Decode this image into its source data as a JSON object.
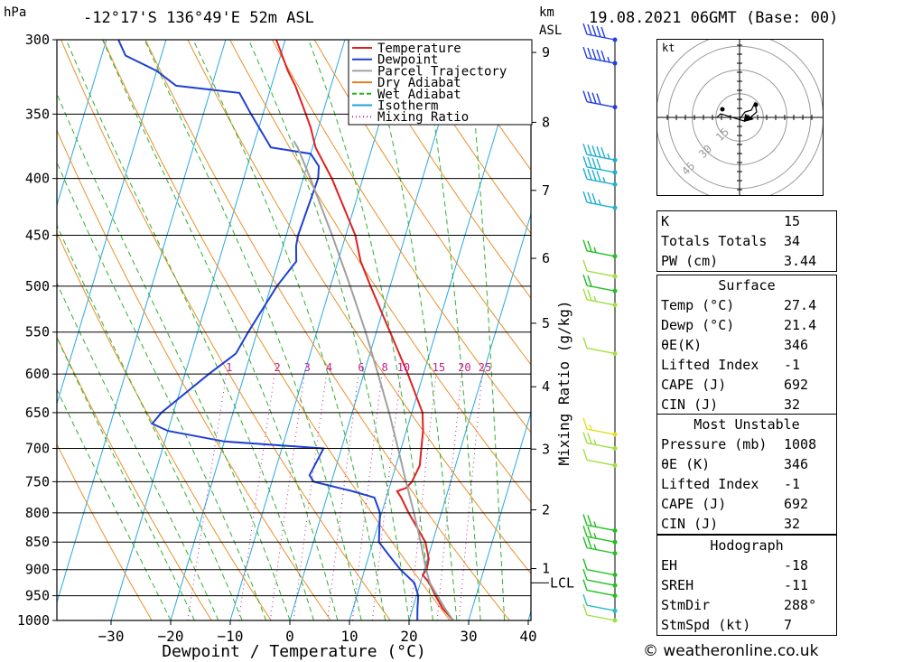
{
  "header": {
    "location": "-12°17'S 136°49'E 52m ASL",
    "datetime": "19.08.2021 06GMT (Base: 00)",
    "hpa_label": "hPa",
    "km_label": "km",
    "asl_label": "ASL"
  },
  "chart_data": {
    "type": "skew-t",
    "xlabel": "Dewpoint / Temperature (°C)",
    "ylabel_right": "Mixing Ratio (g/kg)",
    "xlim": [
      -40,
      40
    ],
    "ylim_hpa": [
      1000,
      300
    ],
    "x_ticks": [
      -30,
      -20,
      -10,
      0,
      10,
      20,
      30,
      40
    ],
    "pressure_ticks": [
      300,
      350,
      400,
      450,
      500,
      550,
      600,
      650,
      700,
      750,
      800,
      850,
      900,
      950,
      1000
    ],
    "km_ticks": [
      {
        "km": 1,
        "hpa": 898
      },
      {
        "km": 2,
        "hpa": 795
      },
      {
        "km": 3,
        "hpa": 701
      },
      {
        "km": 4,
        "hpa": 616
      },
      {
        "km": 5,
        "hpa": 540
      },
      {
        "km": 6,
        "hpa": 472
      },
      {
        "km": 7,
        "hpa": 410
      },
      {
        "km": 8,
        "hpa": 356
      },
      {
        "km": 9,
        "hpa": 308
      }
    ],
    "lcl_label": "LCL",
    "lcl_hpa": 925,
    "mixing_ratio_labels": [
      "1",
      "2",
      "3",
      "4",
      "6",
      "8",
      "10",
      "15",
      "20",
      "25"
    ],
    "mixing_ratio_values": [
      1,
      2,
      3,
      4,
      6,
      8,
      10,
      15,
      20,
      25
    ],
    "legend": [
      {
        "name": "Temperature",
        "color": "#e02020"
      },
      {
        "name": "Dewpoint",
        "color": "#2040d0"
      },
      {
        "name": "Parcel Trajectory",
        "color": "#a0a0a0"
      },
      {
        "name": "Dry Adiabat",
        "color": "#e08020"
      },
      {
        "name": "Wet Adiabat",
        "color": "#20b020"
      },
      {
        "name": "Isotherm",
        "color": "#20a0e0"
      },
      {
        "name": "Mixing Ratio",
        "color": "#c020a0"
      }
    ],
    "series": [
      {
        "name": "Temperature",
        "color": "#e02020",
        "points": [
          [
            1000,
            27.4
          ],
          [
            975,
            25.0
          ],
          [
            950,
            23.2
          ],
          [
            925,
            21.5
          ],
          [
            910,
            20.0
          ],
          [
            900,
            20.4
          ],
          [
            880,
            20.2
          ],
          [
            850,
            18.8
          ],
          [
            800,
            14.5
          ],
          [
            775,
            12.5
          ],
          [
            765,
            11.5
          ],
          [
            760,
            12.8
          ],
          [
            750,
            13.5
          ],
          [
            725,
            14.0
          ],
          [
            700,
            13.4
          ],
          [
            675,
            12.8
          ],
          [
            650,
            11.8
          ],
          [
            600,
            7.4
          ],
          [
            550,
            2.3
          ],
          [
            500,
            -3.3
          ],
          [
            475,
            -6.2
          ],
          [
            450,
            -8.4
          ],
          [
            400,
            -15.2
          ],
          [
            375,
            -19.5
          ],
          [
            360,
            -21.3
          ],
          [
            350,
            -22.8
          ],
          [
            330,
            -26.0
          ],
          [
            320,
            -28.0
          ],
          [
            300,
            -31.5
          ]
        ]
      },
      {
        "name": "Dewpoint",
        "color": "#2040d0",
        "points": [
          [
            1000,
            21.4
          ],
          [
            975,
            20.8
          ],
          [
            950,
            20.3
          ],
          [
            925,
            19.0
          ],
          [
            900,
            16.0
          ],
          [
            875,
            13.5
          ],
          [
            850,
            11.0
          ],
          [
            800,
            9.7
          ],
          [
            775,
            8.0
          ],
          [
            765,
            4.0
          ],
          [
            750,
            -3.0
          ],
          [
            740,
            -4.0
          ],
          [
            700,
            -3.0
          ],
          [
            690,
            -20.0
          ],
          [
            675,
            -30.0
          ],
          [
            665,
            -33.0
          ],
          [
            650,
            -32.0
          ],
          [
            600,
            -26.0
          ],
          [
            575,
            -22.5
          ],
          [
            550,
            -21.5
          ],
          [
            500,
            -19.0
          ],
          [
            475,
            -17.0
          ],
          [
            460,
            -17.8
          ],
          [
            450,
            -18.0
          ],
          [
            400,
            -17.5
          ],
          [
            390,
            -18.0
          ],
          [
            380,
            -20.0
          ],
          [
            375,
            -27.0
          ],
          [
            350,
            -32.0
          ],
          [
            335,
            -35.0
          ],
          [
            330,
            -46.0
          ],
          [
            320,
            -50.0
          ],
          [
            310,
            -56.0
          ],
          [
            300,
            -58.0
          ]
        ]
      },
      {
        "name": "Parcel Trajectory",
        "color": "#a0a0a0",
        "points": [
          [
            1000,
            27.4
          ],
          [
            975,
            25.4
          ],
          [
            950,
            23.5
          ],
          [
            925,
            21.6
          ],
          [
            900,
            20.3
          ],
          [
            850,
            18.0
          ],
          [
            800,
            15.4
          ],
          [
            750,
            12.5
          ],
          [
            700,
            9.5
          ],
          [
            650,
            6.2
          ],
          [
            600,
            2.4
          ],
          [
            550,
            -1.8
          ],
          [
            500,
            -6.7
          ],
          [
            450,
            -12.3
          ],
          [
            400,
            -18.8
          ],
          [
            375,
            -22.5
          ],
          [
            370,
            -23.5
          ]
        ]
      }
    ],
    "wind_barbs": [
      {
        "hpa": 300,
        "color": "#2040e0",
        "kt": 50
      },
      {
        "hpa": 315,
        "color": "#2040e0",
        "kt": 45
      },
      {
        "hpa": 345,
        "color": "#2040e0",
        "kt": 40
      },
      {
        "hpa": 385,
        "color": "#20b0d0",
        "kt": 45
      },
      {
        "hpa": 395,
        "color": "#20b0d0",
        "kt": 40
      },
      {
        "hpa": 405,
        "color": "#20b0d0",
        "kt": 35
      },
      {
        "hpa": 425,
        "color": "#20b0d0",
        "kt": 25
      },
      {
        "hpa": 470,
        "color": "#20c020",
        "kt": 15
      },
      {
        "hpa": 490,
        "color": "#a0e040",
        "kt": 10
      },
      {
        "hpa": 505,
        "color": "#20c020",
        "kt": 20
      },
      {
        "hpa": 520,
        "color": "#a0e040",
        "kt": 15
      },
      {
        "hpa": 575,
        "color": "#a0e040",
        "kt": 10
      },
      {
        "hpa": 680,
        "color": "#e0e020",
        "kt": 5
      },
      {
        "hpa": 700,
        "color": "#a0e040",
        "kt": 15
      },
      {
        "hpa": 725,
        "color": "#a0e040",
        "kt": 10
      },
      {
        "hpa": 830,
        "color": "#20c020",
        "kt": 15
      },
      {
        "hpa": 850,
        "color": "#20c020",
        "kt": 15
      },
      {
        "hpa": 870,
        "color": "#20c020",
        "kt": 15
      },
      {
        "hpa": 910,
        "color": "#20c020",
        "kt": 10
      },
      {
        "hpa": 930,
        "color": "#20c020",
        "kt": 10
      },
      {
        "hpa": 950,
        "color": "#20c020",
        "kt": 10
      },
      {
        "hpa": 980,
        "color": "#20c0c0",
        "kt": 10
      },
      {
        "hpa": 1000,
        "color": "#a0e040",
        "kt": 10
      }
    ],
    "hodograph": {
      "unit_label": "kt",
      "ring_labels": [
        "15",
        "30",
        "45"
      ],
      "ring_values": [
        15,
        30,
        45
      ]
    }
  },
  "indices": [
    {
      "label": "K",
      "value": "15"
    },
    {
      "label": "Totals Totals",
      "value": "34"
    },
    {
      "label": "PW (cm)",
      "value": "3.44"
    }
  ],
  "surface": {
    "title": "Surface",
    "rows": [
      {
        "label": "Temp (°C)",
        "value": "27.4"
      },
      {
        "label": "Dewp (°C)",
        "value": "21.4"
      },
      {
        "label": "θE(K)",
        "value": "346"
      },
      {
        "label": "Lifted Index",
        "value": "-1"
      },
      {
        "label": "CAPE (J)",
        "value": "692"
      },
      {
        "label": "CIN (J)",
        "value": "32"
      }
    ]
  },
  "most_unstable": {
    "title": "Most Unstable",
    "rows": [
      {
        "label": "Pressure (mb)",
        "value": "1008"
      },
      {
        "label": "θE (K)",
        "value": "346"
      },
      {
        "label": "Lifted Index",
        "value": "-1"
      },
      {
        "label": "CAPE (J)",
        "value": "692"
      },
      {
        "label": "CIN (J)",
        "value": "32"
      }
    ]
  },
  "hodograph_table": {
    "title": "Hodograph",
    "rows": [
      {
        "label": "EH",
        "value": "-18"
      },
      {
        "label": "SREH",
        "value": "-11"
      },
      {
        "label": "StmDir",
        "value": "288°"
      },
      {
        "label": "StmSpd (kt)",
        "value": "7"
      }
    ]
  },
  "footer": {
    "copyright": "© weatheronline.co.uk"
  }
}
